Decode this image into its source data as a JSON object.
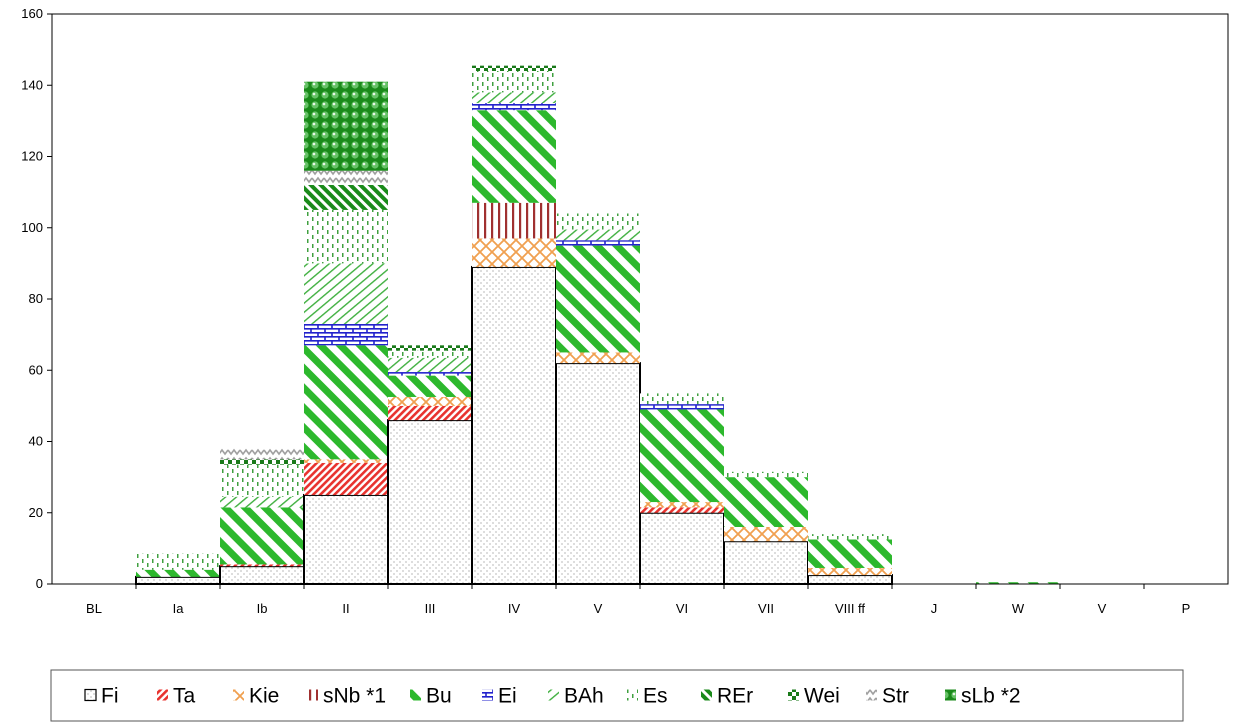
{
  "chart_data": {
    "type": "bar",
    "stacked": true,
    "categories": [
      "BL",
      "Ia",
      "Ib",
      "II",
      "III",
      "IV",
      "V",
      "VI",
      "VII",
      "VIII ff",
      "J",
      "W",
      "V",
      "P"
    ],
    "ylim": [
      0,
      160
    ],
    "yticks": [
      0,
      20,
      40,
      60,
      80,
      100,
      120,
      140,
      160
    ],
    "legend_position": "bottom",
    "series": [
      {
        "name": "Fi",
        "color": "#ffffff",
        "pattern": "dots",
        "values": [
          0,
          2,
          5,
          25,
          46,
          89,
          62,
          20,
          12,
          2.5,
          0,
          0,
          0,
          0
        ]
      },
      {
        "name": "Ta",
        "color": "#e8322e",
        "pattern": "diag-dense",
        "values": [
          0,
          0,
          0.5,
          9,
          4,
          0,
          0,
          1.5,
          0,
          0,
          0,
          0,
          0,
          0
        ]
      },
      {
        "name": "Kie",
        "color": "#f0a050",
        "pattern": "cross",
        "values": [
          0,
          0,
          0,
          1,
          2.5,
          8,
          3,
          1.5,
          4,
          2,
          0,
          0,
          0,
          0
        ]
      },
      {
        "name": "sNb *1",
        "color": "#a03030",
        "pattern": "vertical",
        "values": [
          0,
          0,
          0,
          0,
          0,
          10,
          0,
          0,
          0,
          0,
          0,
          0,
          0,
          0
        ]
      },
      {
        "name": "Bu",
        "color": "#2db82d",
        "pattern": "diag-wide",
        "values": [
          0,
          2,
          16,
          32,
          6,
          26,
          30,
          26,
          14,
          8,
          0,
          0.5,
          0,
          0
        ]
      },
      {
        "name": "Ei",
        "color": "#2222cc",
        "pattern": "brick",
        "values": [
          0,
          0,
          0,
          6,
          1,
          2,
          1.5,
          1.5,
          0,
          0,
          0,
          0,
          0,
          0
        ]
      },
      {
        "name": "BAh",
        "color": "#40b040",
        "pattern": "diag-light",
        "values": [
          0,
          0,
          3,
          17,
          4,
          3,
          3,
          0,
          0,
          0,
          0,
          0,
          0,
          0
        ]
      },
      {
        "name": "Es",
        "color": "#40a040",
        "pattern": "dashes",
        "values": [
          0,
          4.5,
          9,
          15,
          2,
          6,
          4.5,
          3,
          1.5,
          1.5,
          0,
          0,
          0,
          0
        ]
      },
      {
        "name": "REr",
        "color": "#1a8a1a",
        "pattern": "diag-dark",
        "values": [
          0,
          0,
          0,
          7,
          0,
          0,
          0,
          0,
          0,
          0,
          0,
          0,
          0,
          0
        ]
      },
      {
        "name": "Wei",
        "color": "#1a7a1a",
        "pattern": "check",
        "values": [
          0,
          0,
          1.5,
          0,
          1.5,
          1.5,
          0,
          0,
          0,
          0,
          0,
          0,
          0,
          0
        ]
      },
      {
        "name": "Str",
        "color": "#a0a0a0",
        "pattern": "zigzag",
        "values": [
          0,
          0,
          3,
          4,
          0,
          0,
          0,
          0,
          0,
          0,
          0,
          0,
          0,
          0
        ]
      },
      {
        "name": "sLb *2",
        "color": "#1a8a1a",
        "pattern": "spheres",
        "values": [
          0,
          0,
          0,
          25,
          0,
          0,
          0,
          0,
          0,
          0,
          0,
          0,
          0,
          0
        ]
      }
    ]
  }
}
